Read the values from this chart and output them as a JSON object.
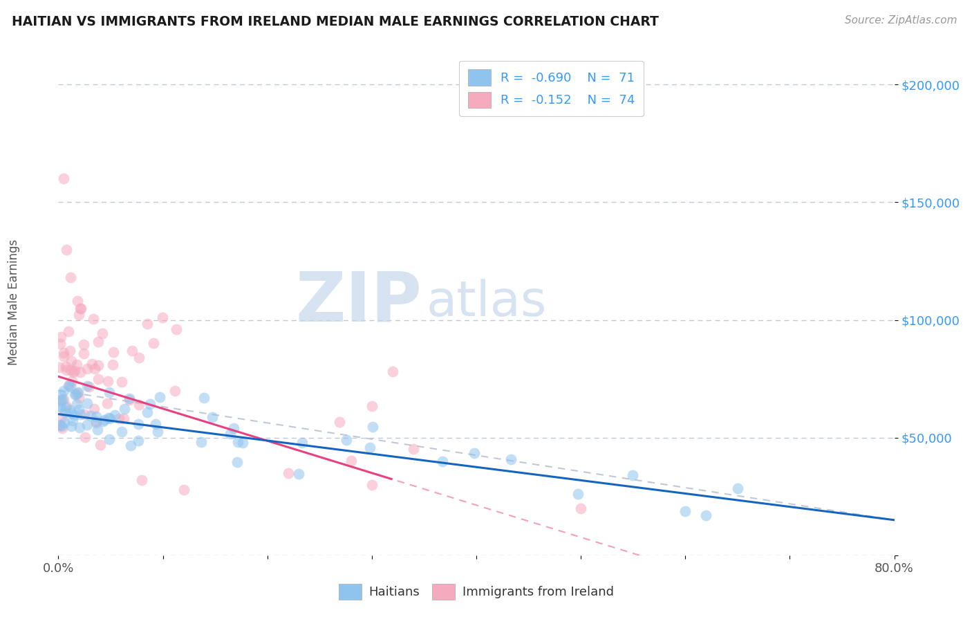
{
  "title": "HAITIAN VS IMMIGRANTS FROM IRELAND MEDIAN MALE EARNINGS CORRELATION CHART",
  "source": "Source: ZipAtlas.com",
  "ylabel": "Median Male Earnings",
  "xlim": [
    0.0,
    0.8
  ],
  "ylim": [
    0,
    215000
  ],
  "yticks": [
    0,
    50000,
    100000,
    150000,
    200000
  ],
  "ytick_labels": [
    "",
    "$50,000",
    "$100,000",
    "$150,000",
    "$200,000"
  ],
  "xtick_labels": [
    "0.0%",
    "",
    "",
    "",
    "",
    "",
    "",
    "",
    "80.0%"
  ],
  "legend_r1": "-0.690",
  "legend_n1": "71",
  "legend_r2": "-0.152",
  "legend_n2": "74",
  "color_haitian": "#8EC4EE",
  "color_ireland": "#F5AABE",
  "color_haitian_line": "#1565C0",
  "color_ireland_line": "#E84080",
  "color_dashed": "#C0C8D8",
  "watermark_zip": "ZIP",
  "watermark_atlas": "atlas",
  "background_color": "#FFFFFF",
  "scatter_alpha": 0.55,
  "scatter_size": 130,
  "haitian_seed": 77,
  "ireland_seed": 88
}
